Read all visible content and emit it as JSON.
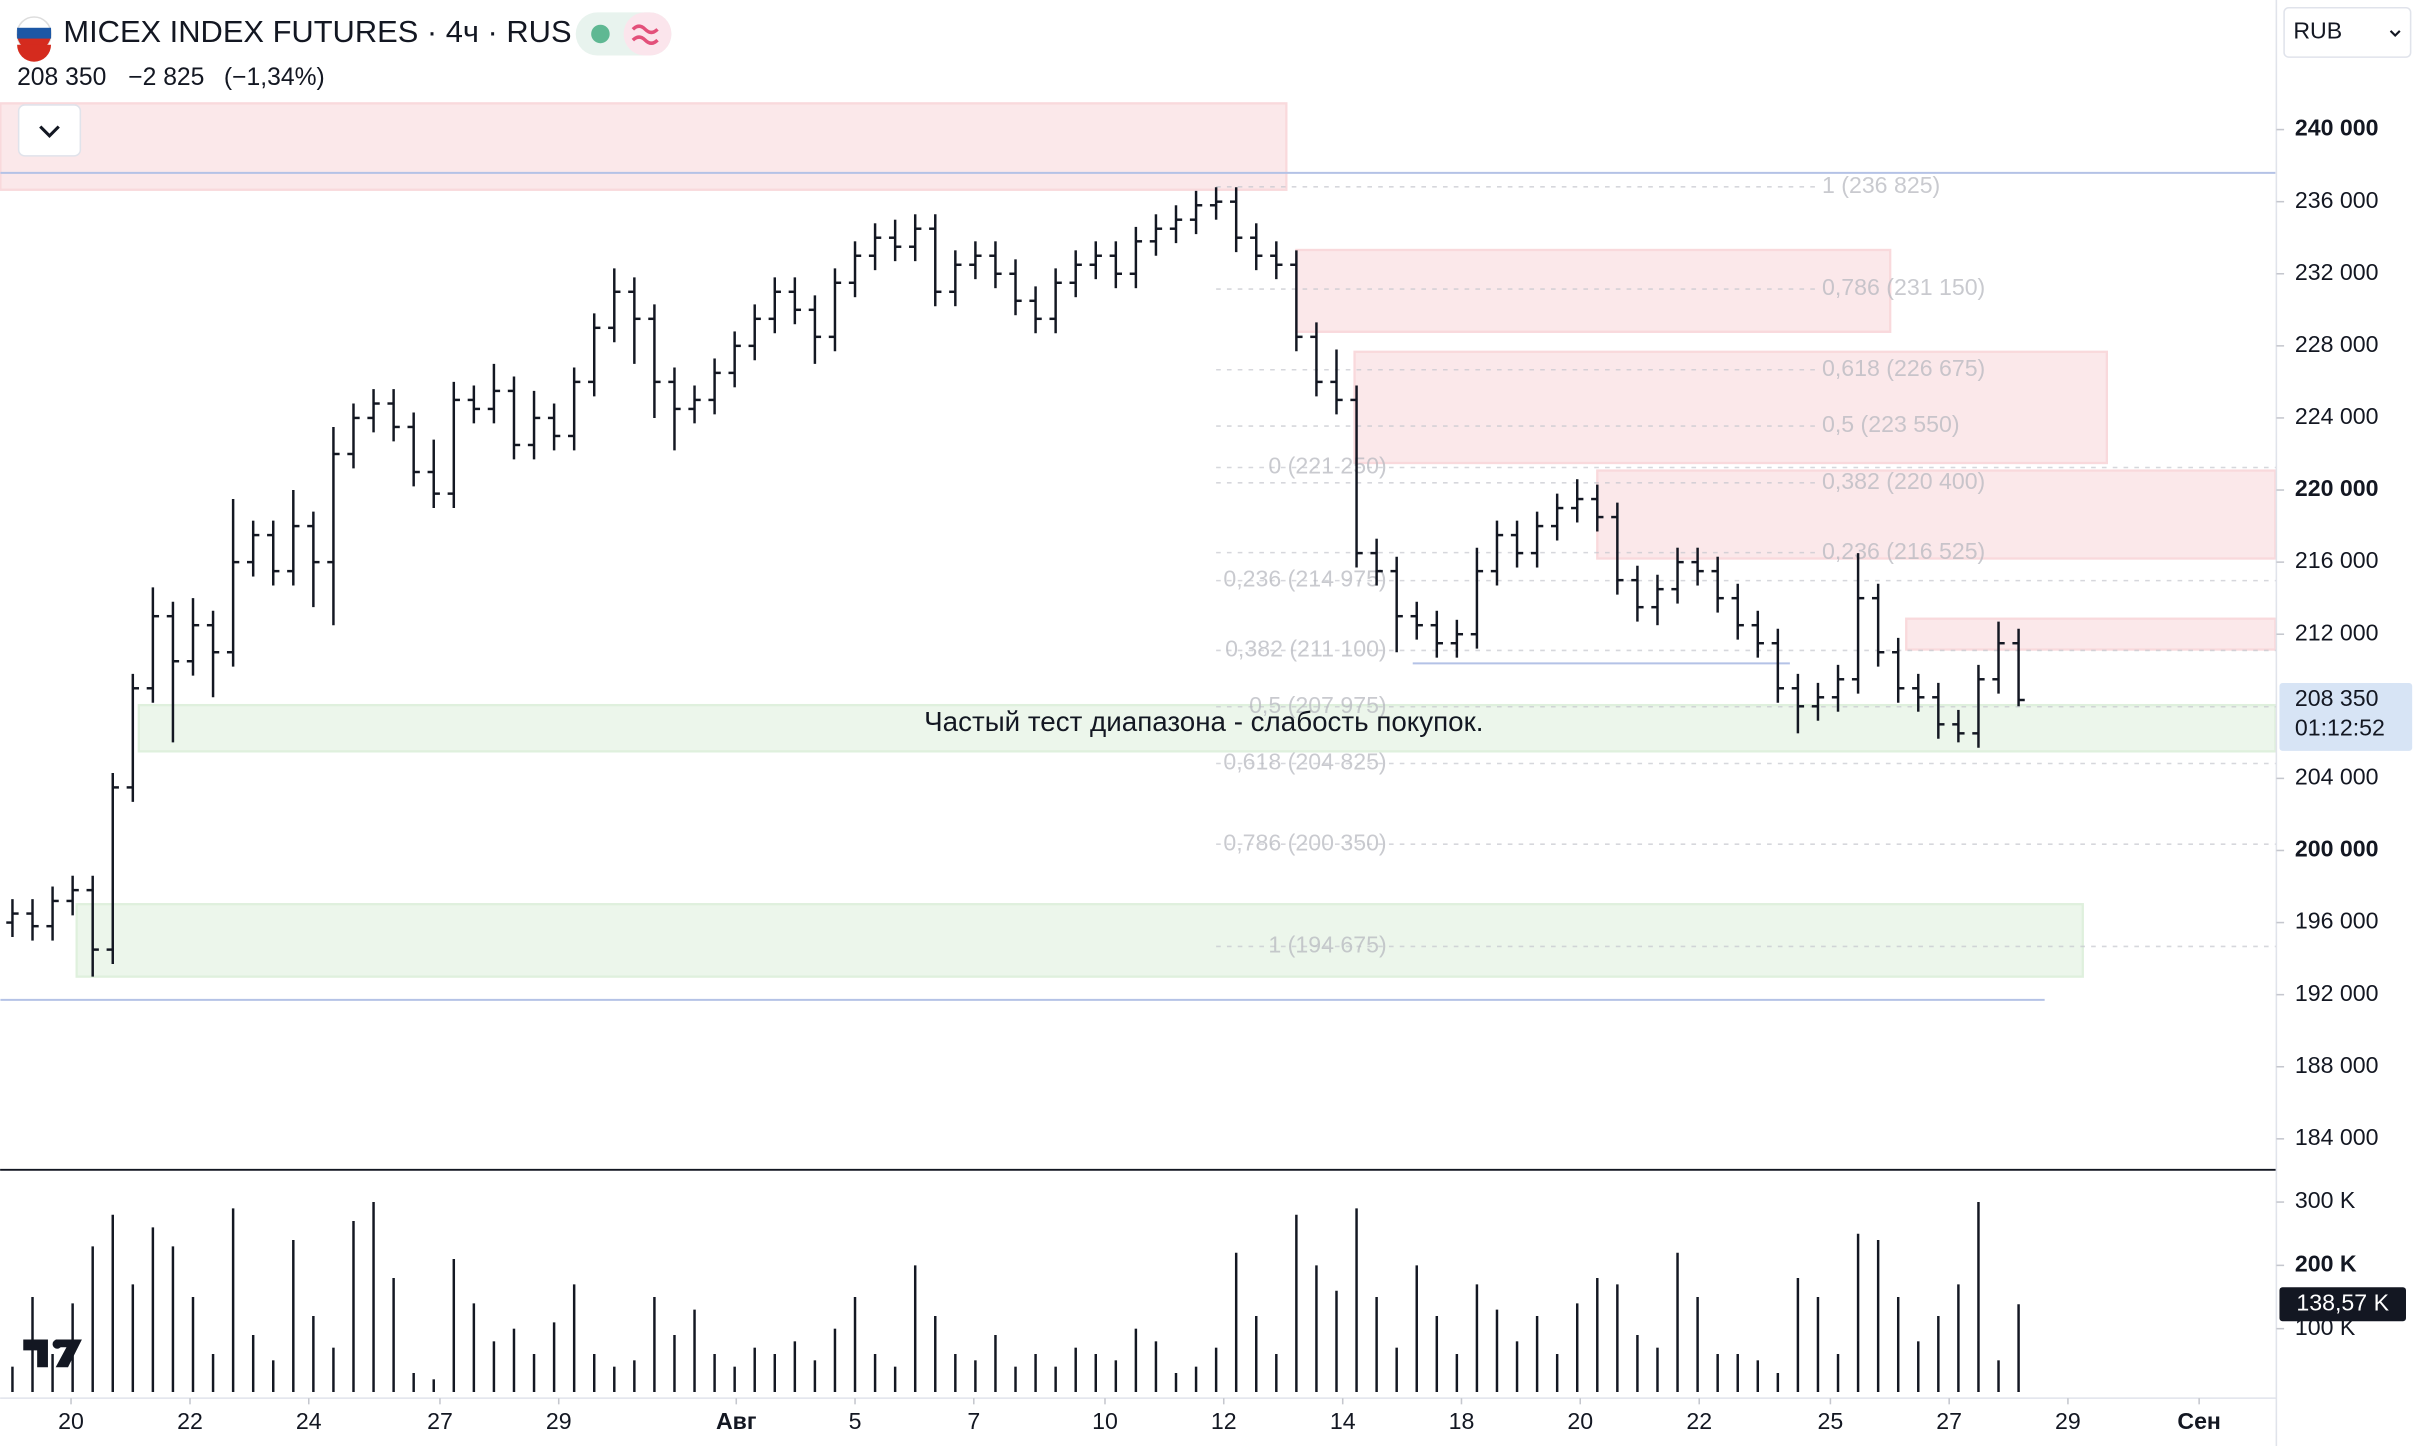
{
  "chart_data": [
    {
      "type": "ohlc",
      "title": "MICEX INDEX FUTURES · 4ч · RUS",
      "legend_last": "208 350",
      "legend_change": "−2 825",
      "legend_change_pct": "(−1,34%)",
      "currency": "RUB",
      "color": "#131722",
      "last_price": {
        "value": 208350,
        "label": "208 350"
      },
      "countdown": "01:12:52",
      "annotation": "Частый тест диапазона - слабость покупок.",
      "xlim": [
        -0.615,
        112.85
      ],
      "ylim": [
        182370,
        247190
      ],
      "yticks": [
        {
          "value": 240000,
          "label": "240 000"
        },
        {
          "value": 236000,
          "label": "236 000"
        },
        {
          "value": 232000,
          "label": "232 000"
        },
        {
          "value": 228000,
          "label": "228 000"
        },
        {
          "value": 224000,
          "label": "224 000"
        },
        {
          "value": 220000,
          "label": "220 000"
        },
        {
          "value": 216000,
          "label": "216 000"
        },
        {
          "value": 212000,
          "label": "212 000"
        },
        {
          "value": 204000,
          "label": "204 000"
        },
        {
          "value": 200000,
          "label": "200 000"
        },
        {
          "value": 196000,
          "label": "196 000"
        },
        {
          "value": 192000,
          "label": "192 000"
        },
        {
          "value": 188000,
          "label": "188 000"
        },
        {
          "value": 184000,
          "label": "184 000"
        }
      ],
      "open": [
        196000,
        196500,
        195800,
        197200,
        197800,
        194500,
        203500,
        209000,
        213000,
        210500,
        212500,
        211000,
        216000,
        217500,
        215500,
        218000,
        216000,
        222000,
        224000,
        224800,
        223500,
        221000,
        219800,
        225000,
        224500,
        225500,
        222500,
        224000,
        223000,
        226000,
        229000,
        231000,
        229500,
        226000,
        224500,
        225000,
        226500,
        228000,
        229500,
        231000,
        230000,
        228500,
        231500,
        233000,
        234000,
        233500,
        234500,
        231000,
        232500,
        233000,
        232000,
        230500,
        229500,
        231500,
        232500,
        233000,
        232000,
        233800,
        234500,
        235000,
        235800,
        236000,
        234000,
        233000,
        232500,
        228500,
        226000,
        225000,
        216500,
        215500,
        213000,
        212500,
        211500,
        212000,
        215500,
        217500,
        216500,
        218000,
        219000,
        219500,
        218500,
        215000,
        213500,
        214500,
        216000,
        215500,
        214000,
        212500,
        211500,
        209000,
        208000,
        208500,
        209500,
        214000,
        211000,
        209000,
        208500,
        207000,
        206500,
        209500,
        211500
      ],
      "high": [
        197300,
        197300,
        198000,
        198600,
        198600,
        204300,
        209800,
        214600,
        213800,
        214000,
        213300,
        219500,
        218300,
        218300,
        220000,
        218800,
        223500,
        224800,
        225600,
        225600,
        224300,
        222800,
        226000,
        225800,
        227000,
        226300,
        225500,
        224800,
        226800,
        229800,
        232300,
        231800,
        230300,
        226800,
        225800,
        227300,
        228800,
        230300,
        231800,
        231800,
        230800,
        232300,
        233800,
        234800,
        235000,
        235300,
        235300,
        233300,
        233800,
        233800,
        232800,
        231300,
        232300,
        233300,
        233800,
        233800,
        234600,
        235300,
        235800,
        236600,
        236800,
        236800,
        234800,
        233800,
        233300,
        229300,
        227800,
        225800,
        217300,
        216300,
        213800,
        213300,
        212800,
        216800,
        218300,
        218300,
        218800,
        219800,
        220600,
        220300,
        219300,
        215800,
        215300,
        216800,
        216800,
        216300,
        214800,
        213300,
        212300,
        209800,
        209300,
        210300,
        216500,
        214800,
        211800,
        209800,
        209300,
        207800,
        210300,
        212700,
        212300
      ],
      "low": [
        195200,
        195000,
        195000,
        196400,
        193000,
        193700,
        202700,
        208200,
        206000,
        209700,
        208500,
        210200,
        215200,
        214700,
        214700,
        213500,
        212500,
        221200,
        223200,
        222700,
        220200,
        219000,
        219000,
        223700,
        223700,
        221700,
        221700,
        222200,
        222200,
        225200,
        228200,
        227000,
        224000,
        222200,
        223700,
        224200,
        225700,
        227200,
        228700,
        229200,
        227000,
        227700,
        230700,
        232200,
        232700,
        232700,
        230200,
        230200,
        231700,
        231200,
        229700,
        228700,
        228700,
        230700,
        231700,
        231200,
        231200,
        233000,
        233700,
        234200,
        235000,
        233200,
        232200,
        231700,
        227700,
        225200,
        224200,
        215700,
        214700,
        211000,
        211700,
        210700,
        210700,
        211200,
        214700,
        215700,
        215700,
        217200,
        218200,
        217700,
        214200,
        212700,
        212500,
        213700,
        214700,
        213200,
        211700,
        210700,
        208200,
        206500,
        207200,
        207700,
        208700,
        210200,
        208200,
        207700,
        206200,
        206000,
        205700,
        208700,
        208000
      ],
      "close": [
        196500,
        195800,
        197200,
        197800,
        194500,
        203500,
        209000,
        213000,
        210500,
        212500,
        211000,
        216000,
        217500,
        215500,
        218000,
        216000,
        222000,
        224000,
        224800,
        223500,
        221000,
        219800,
        225000,
        224500,
        225500,
        222500,
        224000,
        223000,
        226000,
        229000,
        231000,
        229500,
        226000,
        224500,
        225000,
        226500,
        228000,
        229500,
        231000,
        230000,
        228500,
        231500,
        233000,
        234000,
        233500,
        234500,
        231000,
        232500,
        233000,
        232000,
        230500,
        229500,
        231500,
        232500,
        233000,
        232000,
        233800,
        234500,
        235000,
        235800,
        236000,
        234000,
        233000,
        232500,
        228500,
        226000,
        225000,
        216500,
        215500,
        213000,
        212500,
        211500,
        212000,
        215500,
        217500,
        216500,
        218000,
        219000,
        219500,
        218500,
        215000,
        213500,
        214500,
        216000,
        215500,
        214000,
        212500,
        211500,
        209000,
        208000,
        208500,
        209500,
        214000,
        211000,
        209000,
        208500,
        207000,
        206500,
        209500,
        211500,
        208350
      ],
      "zones": [
        {
          "x": [
            -0.6,
            63.5
          ],
          "y": [
            236660,
            241455
          ],
          "color": "#f9d9dc"
        },
        {
          "x": [
            64,
            93.6
          ],
          "y": [
            228780,
            233320
          ],
          "color": "#f9d9dc"
        },
        {
          "x": [
            66.9,
            104.4
          ],
          "y": [
            221500,
            227670
          ],
          "color": "#f9d9dc"
        },
        {
          "x": [
            79,
            112.8
          ],
          "y": [
            216200,
            221080
          ],
          "color": "#f9d9dc"
        },
        {
          "x": [
            94.4,
            112.8
          ],
          "y": [
            211150,
            212860
          ],
          "color": "#f9d9dc"
        },
        {
          "x": [
            6.3,
            112.8
          ],
          "y": [
            205500,
            208065
          ],
          "color": "#dff0dd"
        },
        {
          "x": [
            3.2,
            103.2
          ],
          "y": [
            193000,
            197020
          ],
          "color": "#dff0dd"
        }
      ],
      "hlines": [
        {
          "value": 237600,
          "x": [
            -0.6,
            112.8
          ],
          "color": "#b4c2e6"
        },
        {
          "value": 191710,
          "x": [
            -0.6,
            101.3
          ],
          "color": "#b4c2e6"
        },
        {
          "value": 210380,
          "x": [
            69.8,
            88.6
          ],
          "color": "#b4c2e6"
        }
      ],
      "fibonacci": [
        {
          "levels": [
            {
              "value": 236825,
              "label": "1 (236 825)"
            },
            {
              "value": 231150,
              "label": "0,786 (231 150)"
            },
            {
              "value": 226675,
              "label": "0,618 (226 675)"
            },
            {
              "value": 223550,
              "label": "0,5 (223 550)"
            },
            {
              "value": 220400,
              "label": "0,382 (220 400)"
            },
            {
              "value": 216525,
              "label": "0,236 (216 525)"
            }
          ]
        },
        {
          "levels": [
            {
              "value": 221250,
              "label": "0 (221 250)"
            },
            {
              "value": 214975,
              "label": "0,236 (214 975)"
            },
            {
              "value": 211100,
              "label": "0,382 (211 100)"
            },
            {
              "value": 207975,
              "label": "0,5 (207 975)"
            },
            {
              "value": 204825,
              "label": "0,618 (204 825)"
            },
            {
              "value": 200350,
              "label": "0,786 (200 350)"
            },
            {
              "value": 194675,
              "label": "1 (194 675)"
            }
          ]
        }
      ]
    },
    {
      "type": "bar",
      "color": "#131722",
      "xlim": [
        -0.615,
        112.85
      ],
      "ylim": [
        0,
        351000
      ],
      "yticks": [
        {
          "value": 300000,
          "label": "300 K"
        },
        {
          "value": 200000,
          "label": "200 K"
        },
        {
          "value": 100000,
          "label": "100 K"
        }
      ],
      "last_label": {
        "value": 138570,
        "label": "138,57 K"
      },
      "xticks": [
        {
          "value": 2.92,
          "label": "20"
        },
        {
          "value": 8.85,
          "label": "22"
        },
        {
          "value": 14.77,
          "label": "24"
        },
        {
          "value": 21.31,
          "label": "27"
        },
        {
          "value": 27.23,
          "label": "29"
        },
        {
          "value": 36.08,
          "label": "Авг"
        },
        {
          "value": 42,
          "label": "5"
        },
        {
          "value": 47.92,
          "label": "7"
        },
        {
          "value": 54.46,
          "label": "10"
        },
        {
          "value": 60.38,
          "label": "12"
        },
        {
          "value": 66.31,
          "label": "14"
        },
        {
          "value": 72.23,
          "label": "18"
        },
        {
          "value": 78.15,
          "label": "20"
        },
        {
          "value": 84.08,
          "label": "22"
        },
        {
          "value": 90.62,
          "label": "25"
        },
        {
          "value": 96.54,
          "label": "27"
        },
        {
          "value": 102.46,
          "label": "29"
        },
        {
          "value": 109,
          "label": "Сен"
        }
      ],
      "values": [
        40000,
        150000,
        60000,
        140000,
        230000,
        280000,
        170000,
        260000,
        230000,
        150000,
        60000,
        290000,
        90000,
        50000,
        240000,
        120000,
        70000,
        270000,
        300000,
        180000,
        30000,
        20000,
        210000,
        140000,
        80000,
        100000,
        60000,
        110000,
        170000,
        60000,
        40000,
        50000,
        150000,
        90000,
        130000,
        60000,
        40000,
        70000,
        60000,
        80000,
        50000,
        100000,
        150000,
        60000,
        40000,
        200000,
        120000,
        60000,
        50000,
        90000,
        40000,
        60000,
        40000,
        70000,
        60000,
        50000,
        100000,
        80000,
        30000,
        40000,
        70000,
        220000,
        120000,
        60000,
        280000,
        200000,
        160000,
        290000,
        150000,
        70000,
        200000,
        120000,
        60000,
        170000,
        130000,
        80000,
        120000,
        60000,
        140000,
        180000,
        170000,
        90000,
        70000,
        220000,
        150000,
        60000,
        60000,
        50000,
        30000,
        180000,
        150000,
        60000,
        250000,
        240000,
        150000,
        80000,
        120000,
        170000,
        300000,
        50000,
        138570
      ]
    }
  ]
}
